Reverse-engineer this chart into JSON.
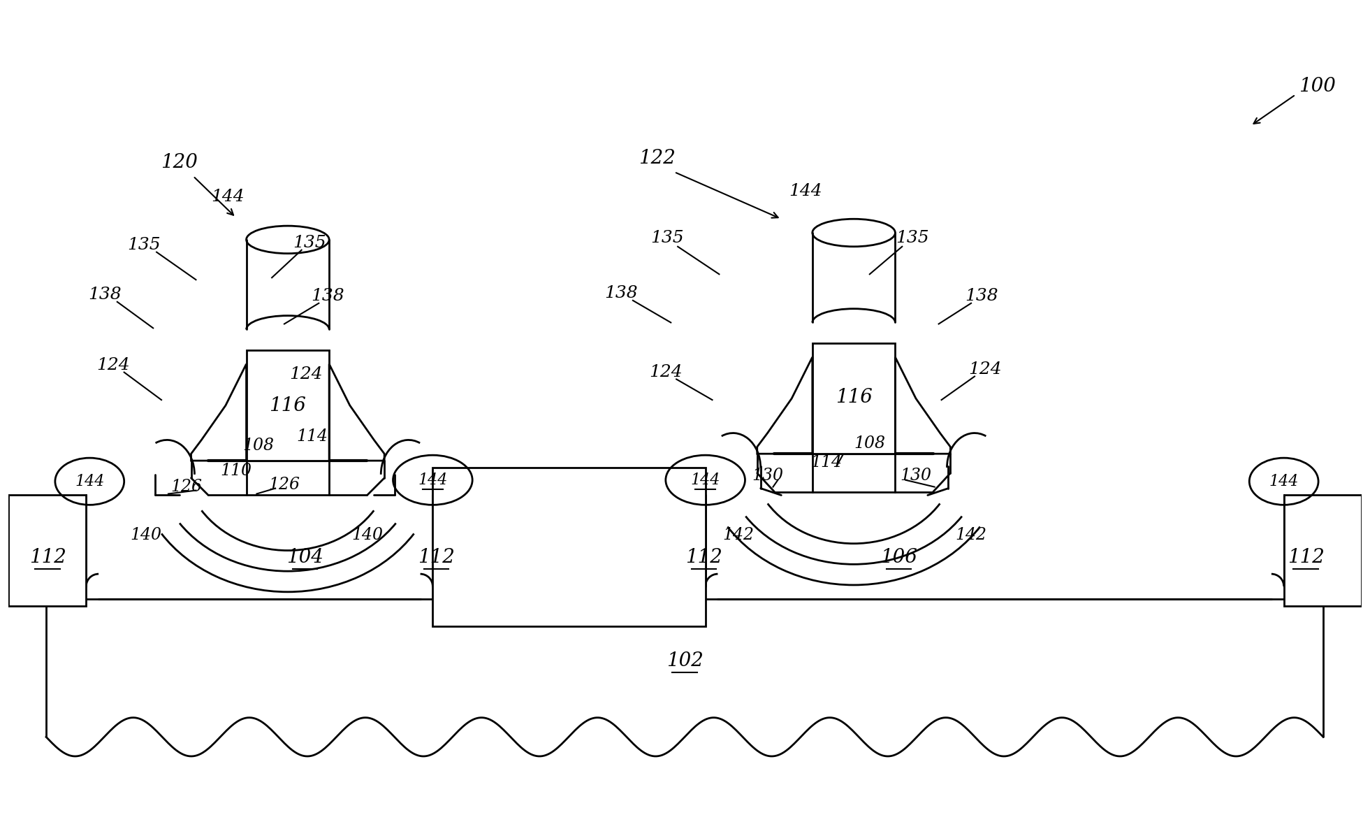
{
  "fig_width": 19.61,
  "fig_height": 11.66,
  "bg_color": "#ffffff",
  "line_color": "#000000",
  "line_width": 2.0,
  "font_size": 20,
  "font_size_sm": 18
}
